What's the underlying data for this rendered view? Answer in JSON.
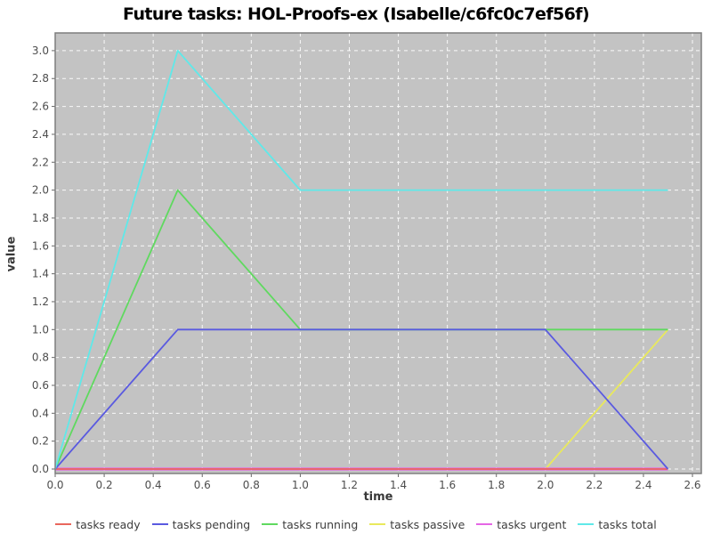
{
  "title": "Future tasks: HOL-Proofs-ex (Isabelle/c6fc0c7ef56f)",
  "chart_data": {
    "type": "line",
    "title": "Future tasks: HOL-Proofs-ex (Isabelle/c6fc0c7ef56f)",
    "xlabel": "time",
    "ylabel": "value",
    "xlim": [
      0.0,
      2.64
    ],
    "ylim": [
      0.0,
      3.12
    ],
    "xticks": [
      0.0,
      0.2,
      0.4,
      0.6,
      0.8,
      1.0,
      1.2,
      1.4,
      1.6,
      1.8,
      2.0,
      2.2,
      2.4,
      2.6
    ],
    "yticks": [
      0.0,
      0.2,
      0.4,
      0.6,
      0.8,
      1.0,
      1.2,
      1.4,
      1.6,
      1.8,
      2.0,
      2.2,
      2.4,
      2.6,
      2.8,
      3.0
    ],
    "grid": true,
    "grid_style": "dashed-white",
    "legend_position": "bottom",
    "colors": {
      "plot_background": "#c3c3c3",
      "grid": "#ffffff",
      "plot_border": "#7e7e7e",
      "tick_label": "#4d4d4d"
    },
    "series": [
      {
        "name": "tasks passive",
        "color": "#e9e95c",
        "width": 1.8,
        "points": [
          [
            0.0,
            0.0
          ],
          [
            2.0,
            0.0
          ],
          [
            2.5,
            1.0
          ]
        ]
      },
      {
        "name": "tasks urgent",
        "color": "#e566e5",
        "width": 3.2,
        "points": [
          [
            0.0,
            0.0
          ],
          [
            2.5,
            0.0
          ]
        ]
      },
      {
        "name": "tasks ready",
        "color": "#e9675d",
        "width": 1.8,
        "points": [
          [
            0.0,
            0.0
          ],
          [
            2.5,
            0.0
          ]
        ]
      },
      {
        "name": "tasks running",
        "color": "#5fd95f",
        "width": 1.8,
        "points": [
          [
            0.0,
            0.0
          ],
          [
            0.5,
            2.0
          ],
          [
            1.0,
            1.0
          ],
          [
            2.5,
            1.0
          ]
        ]
      },
      {
        "name": "tasks pending",
        "color": "#5a5ae0",
        "width": 1.8,
        "points": [
          [
            0.0,
            0.0
          ],
          [
            0.5,
            1.0
          ],
          [
            2.0,
            1.0
          ],
          [
            2.5,
            0.0
          ]
        ]
      },
      {
        "name": "tasks total",
        "color": "#5fe9e9",
        "width": 1.8,
        "points": [
          [
            0.0,
            0.0
          ],
          [
            0.5,
            3.0
          ],
          [
            1.0,
            2.0
          ],
          [
            2.5,
            2.0
          ]
        ]
      }
    ],
    "legend_order": [
      "tasks ready",
      "tasks pending",
      "tasks running",
      "tasks passive",
      "tasks urgent",
      "tasks total"
    ]
  }
}
